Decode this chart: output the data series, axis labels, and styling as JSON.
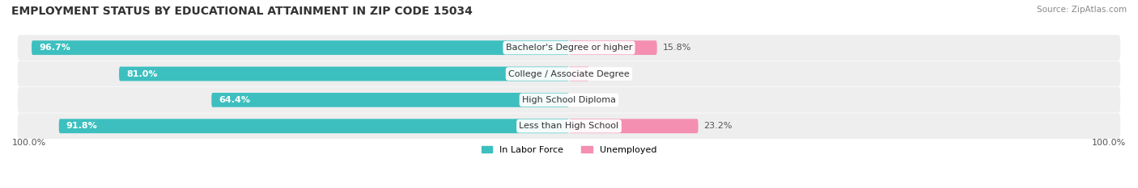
{
  "title": "EMPLOYMENT STATUS BY EDUCATIONAL ATTAINMENT IN ZIP CODE 15034",
  "source": "Source: ZipAtlas.com",
  "categories": [
    "Less than High School",
    "High School Diploma",
    "College / Associate Degree",
    "Bachelor's Degree or higher"
  ],
  "in_labor_force": [
    91.8,
    64.4,
    81.0,
    96.7
  ],
  "unemployed": [
    23.2,
    0.0,
    3.6,
    15.8
  ],
  "x_left_label": "100.0%",
  "x_right_label": "100.0%",
  "legend_items": [
    "In Labor Force",
    "Unemployed"
  ],
  "color_labor": "#3dbfbf",
  "color_unemployed": "#f48fb1",
  "bar_height": 0.55,
  "label_fontsize": 8,
  "title_fontsize": 10,
  "source_fontsize": 7.5
}
